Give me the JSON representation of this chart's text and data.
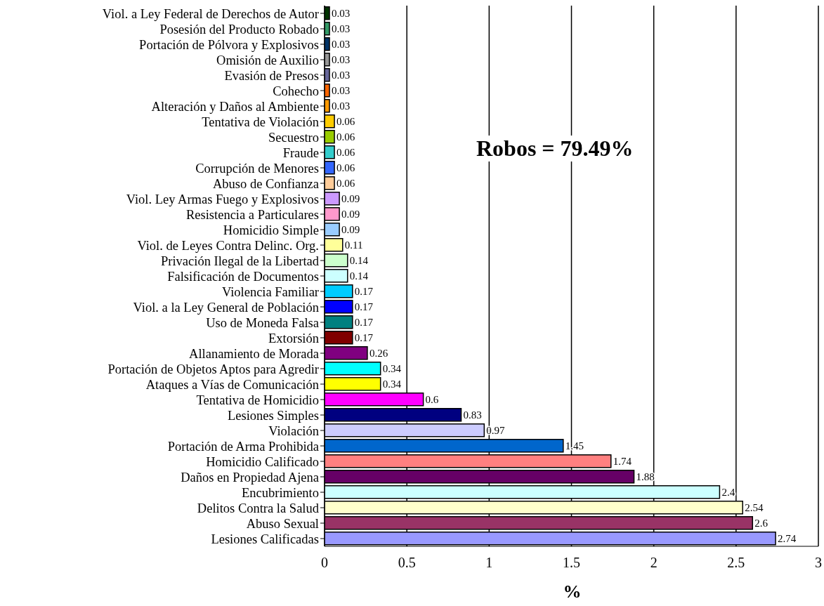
{
  "chart_data": {
    "type": "bar",
    "orientation": "horizontal",
    "xlabel": "%",
    "categories": [
      "Viol. a Ley Federal de Derechos de Autor",
      "Posesión del Producto Robado",
      "Portación de Pólvora y Explosivos",
      "Omisión de Auxilio",
      "Evasión de Presos",
      "Cohecho",
      "Alteración y Daños al Ambiente",
      "Tentativa de Violación",
      "Secuestro",
      "Fraude",
      "Corrupción de Menores",
      "Abuso de Confianza",
      "Viol. Ley Armas Fuego y Explosivos",
      "Resistencia a Particulares",
      "Homicidio Simple",
      "Viol. de Leyes Contra Delinc. Org.",
      "Privación Ilegal de la Libertad",
      "Falsificación de Documentos",
      "Violencia Familiar",
      "Viol. a la Ley General de Población",
      "Uso de Moneda Falsa",
      "Extorsión",
      "Allanamiento de Morada",
      "Portación de Objetos Aptos para Agredir",
      "Ataques a Vías de Comunicación",
      "Tentativa de Homicidio",
      "Lesiones Simples",
      "Violación",
      "Portación de Arma Prohibida",
      "Homicidio Calificado",
      "Daños en Propiedad Ajena",
      "Encubrimiento",
      "Delitos Contra la Salud",
      "Abuso Sexual",
      "Lesiones Calificadas"
    ],
    "values": [
      0.03,
      0.03,
      0.03,
      0.03,
      0.03,
      0.03,
      0.03,
      0.06,
      0.06,
      0.06,
      0.06,
      0.06,
      0.09,
      0.09,
      0.09,
      0.11,
      0.14,
      0.14,
      0.17,
      0.17,
      0.17,
      0.17,
      0.26,
      0.34,
      0.34,
      0.6,
      0.83,
      0.97,
      1.45,
      1.74,
      1.88,
      2.4,
      2.54,
      2.6,
      2.74
    ],
    "colors": [
      "#003300",
      "#339966",
      "#003366",
      "#969696",
      "#666699",
      "#ff6600",
      "#ff9900",
      "#ffcc00",
      "#99cc00",
      "#33cccc",
      "#3366ff",
      "#ffcc99",
      "#cc99ff",
      "#ff99cc",
      "#99ccff",
      "#ffff99",
      "#ccffcc",
      "#ccffff",
      "#00ccff",
      "#0000ff",
      "#008080",
      "#800000",
      "#800080",
      "#00ffff",
      "#ffff00",
      "#ff00ff",
      "#000080",
      "#ccccff",
      "#0066cc",
      "#ff8080",
      "#660066",
      "#ccffff",
      "#ffffcc",
      "#993366",
      "#9999ff"
    ],
    "xlim": [
      0,
      3
    ],
    "xticks": [
      0,
      0.5,
      1,
      1.5,
      2,
      2.5,
      3
    ],
    "grid": "x",
    "data_labels": true,
    "annotations": [
      "Robos = 79.49%"
    ]
  }
}
